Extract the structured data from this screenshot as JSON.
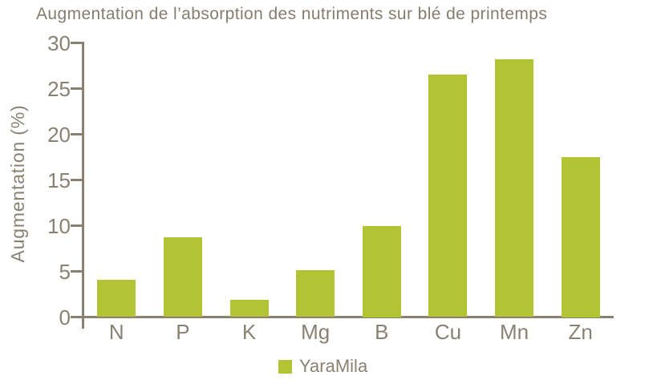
{
  "chart_data": {
    "type": "bar",
    "title": "Augmentation de l’absorption des nutriments sur blé de printemps",
    "ylabel": "Augmentation (%)",
    "xlabel": "",
    "categories": [
      "N",
      "P",
      "K",
      "Mg",
      "B",
      "Cu",
      "Mn",
      "Zn"
    ],
    "series": [
      {
        "name": "YaraMila",
        "values": [
          4.1,
          8.7,
          1.9,
          5.1,
          10.0,
          26.5,
          28.2,
          17.5
        ]
      }
    ],
    "ylim": [
      0,
      30
    ],
    "yticks": [
      0,
      5,
      10,
      15,
      20,
      25,
      30
    ],
    "grid": false,
    "legend_position": "bottom",
    "colors": {
      "bar": "#b2c434",
      "axis": "#8a8173",
      "text": "#8a8173",
      "title_text": "#867d6f",
      "background": "#ffffff"
    }
  }
}
